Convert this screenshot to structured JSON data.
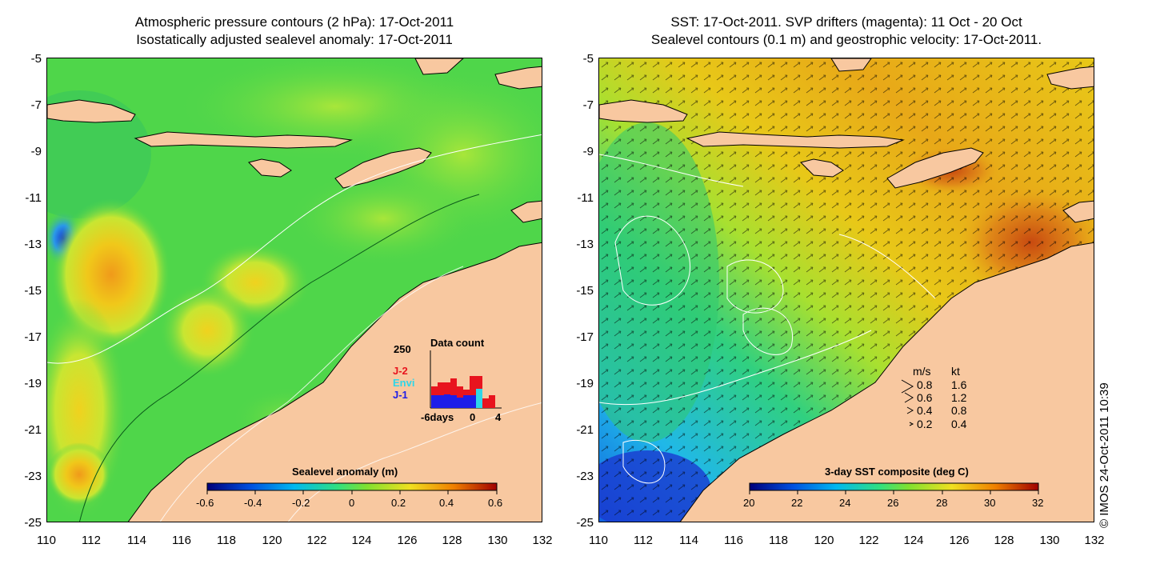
{
  "left_panel": {
    "title_line1": "Atmospheric pressure contours (2 hPa): 17-Oct-2011",
    "title_line2": "Isostatically adjusted sealevel anomaly: 17-Oct-2011",
    "colorbar": {
      "label": "Sealevel anomaly (m)",
      "ticks": [
        "-0.6",
        "-0.4",
        "-0.2",
        "0",
        "0.2",
        "0.4",
        "0.6"
      ]
    },
    "inset": {
      "title": "Data count",
      "y_max_label": "250",
      "x_tick_labels": [
        "-6days",
        "0",
        "4"
      ],
      "legend": [
        {
          "label": "J-2",
          "color": "#e8141e"
        },
        {
          "label": "Envi",
          "color": "#2fd6e8"
        },
        {
          "label": "J-1",
          "color": "#1e1ee8"
        }
      ]
    }
  },
  "right_panel": {
    "title_line1": "SST: 17-Oct-2011. SVP drifters (magenta): 11 Oct - 20 Oct",
    "title_line2": "Sealevel contours (0.1 m) and geostrophic velocity: 17-Oct-2011.",
    "colorbar": {
      "label": "3-day SST composite (deg C)",
      "ticks": [
        "20",
        "22",
        "24",
        "26",
        "28",
        "30",
        "32"
      ]
    },
    "speed_legend": {
      "header_ms": "m/s",
      "header_kt": "kt",
      "rows": [
        {
          "ms": "0.8",
          "kt": "1.6"
        },
        {
          "ms": "0.6",
          "kt": "1.2"
        },
        {
          "ms": "0.4",
          "kt": "0.8"
        },
        {
          "ms": "0.2",
          "kt": "0.4"
        }
      ]
    }
  },
  "axes": {
    "y_ticks": [
      "-5",
      "-7",
      "-9",
      "-11",
      "-13",
      "-15",
      "-17",
      "-19",
      "-21",
      "-23",
      "-25"
    ],
    "x_ticks": [
      "110",
      "112",
      "114",
      "116",
      "118",
      "120",
      "122",
      "124",
      "126",
      "128",
      "130",
      "132"
    ]
  },
  "copyright": "© IMOS 24-Oct-2011 10:39",
  "colors": {
    "land": "#f8c8a0",
    "sla_mid": "#4fd64a",
    "sst_mid": "#e8c800"
  }
}
